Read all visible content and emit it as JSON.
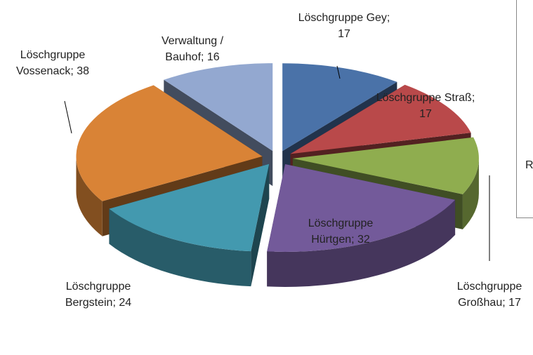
{
  "chart_data": {
    "type": "pie3d",
    "categories": [
      "Löschgruppe Gey",
      "Löschgruppe Straß",
      "Löschgruppe Großhau",
      "Löschgruppe Hürtgen",
      "Löschgruppe Bergstein",
      "Löschgruppe Vossenack",
      "Verwaltung / Bauhof"
    ],
    "values": [
      17,
      17,
      17,
      32,
      24,
      38,
      16
    ],
    "value_labels": [
      "Löschgruppe Gey; 17",
      "Löschgruppe Straß; 17",
      "Löschgruppe Großhau; 17",
      "Löschgruppe Hürtgen; 32",
      "Löschgruppe Bergstein; 24",
      "Löschgruppe Vossenack; 38",
      "Verwaltung / Bauhof; 16"
    ],
    "colors": [
      "#4a72a8",
      "#b9494a",
      "#8fad4f",
      "#735a9a",
      "#4399af",
      "#d98336",
      "#93a8d0"
    ],
    "legend_text": "R"
  }
}
